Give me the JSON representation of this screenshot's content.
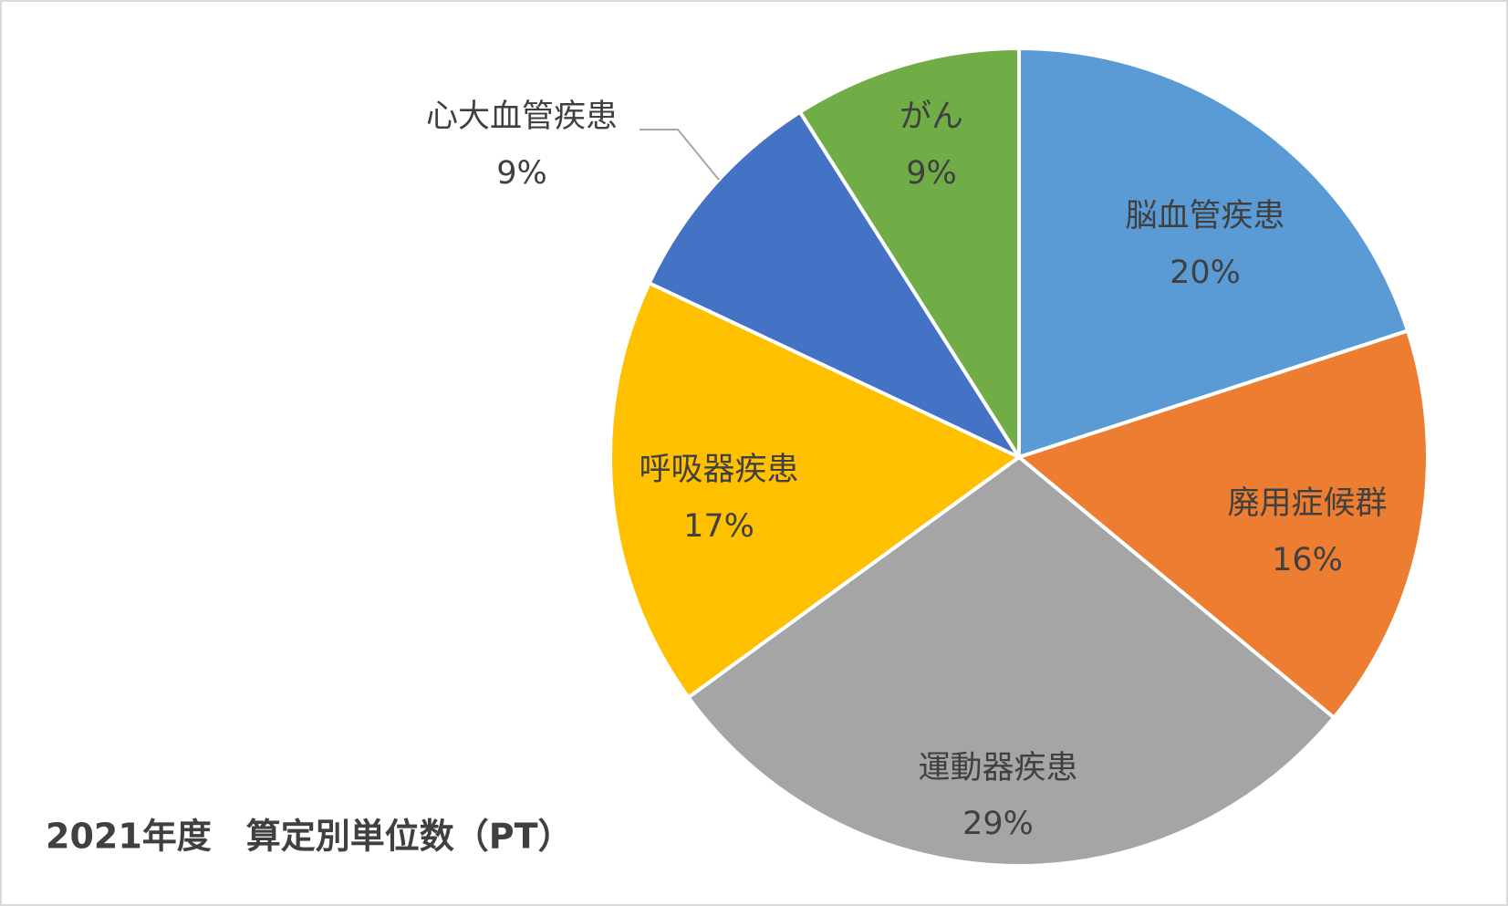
{
  "chart_data": {
    "type": "pie",
    "title": "2021年度　算定別単位数（PT）",
    "categories": [
      "脳血管疾患",
      "廃用症候群",
      "運動器疾患",
      "呼吸器疾患",
      "心大血管疾患",
      "がん"
    ],
    "values": [
      20,
      16,
      29,
      17,
      9,
      9
    ],
    "value_labels": [
      "20%",
      "16%",
      "29%",
      "17%",
      "9%",
      "9%"
    ],
    "colors": [
      "#5b9bd5",
      "#ed7d31",
      "#a5a5a5",
      "#ffc000",
      "#4472c4",
      "#70ad47"
    ]
  }
}
